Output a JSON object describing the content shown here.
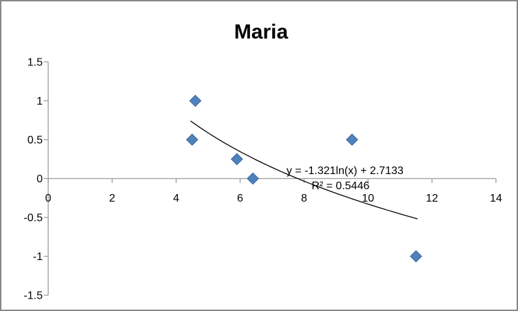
{
  "chart_data": {
    "type": "scatter",
    "title": "Maria",
    "grid": "off",
    "legend": "none",
    "points": [
      {
        "x": 4.5,
        "y": 0.5
      },
      {
        "x": 4.6,
        "y": 1.0
      },
      {
        "x": 5.9,
        "y": 0.25
      },
      {
        "x": 6.4,
        "y": 0.0
      },
      {
        "x": 9.5,
        "y": 0.5
      },
      {
        "x": 11.5,
        "y": -1.0
      }
    ],
    "x_axis": {
      "min": 0,
      "max": 14,
      "tick_step": 2,
      "tick_labels": [
        "0",
        "2",
        "4",
        "6",
        "8",
        "10",
        "12",
        "14"
      ]
    },
    "y_axis": {
      "min": -1.5,
      "max": 1.5,
      "tick_step": 0.5,
      "tick_labels": [
        "1.5",
        "1",
        "0.5",
        "0",
        "-0.5",
        "-1",
        "-1.5"
      ]
    },
    "trendline": {
      "kind": "logarithmic",
      "coef_a": -1.321,
      "coef_b": 2.7133,
      "x_start": 4.45,
      "x_end": 11.55,
      "equation_label": "y = -1.321ln(x) + 2.7133",
      "r2_label": "R² = 0.5446"
    },
    "annotation_anchor": {
      "equation": {
        "x": 9.28,
        "y": 0.105
      },
      "r2": {
        "x": 9.14,
        "y": -0.09
      }
    },
    "colors": {
      "marker_fill": "#4f81bd",
      "marker_stroke": "#3a699b",
      "axis_line": "#9b9b9b",
      "trendline": "#000000",
      "text": "#000000",
      "chart_border": "#878787",
      "background": "#ffffff"
    }
  }
}
